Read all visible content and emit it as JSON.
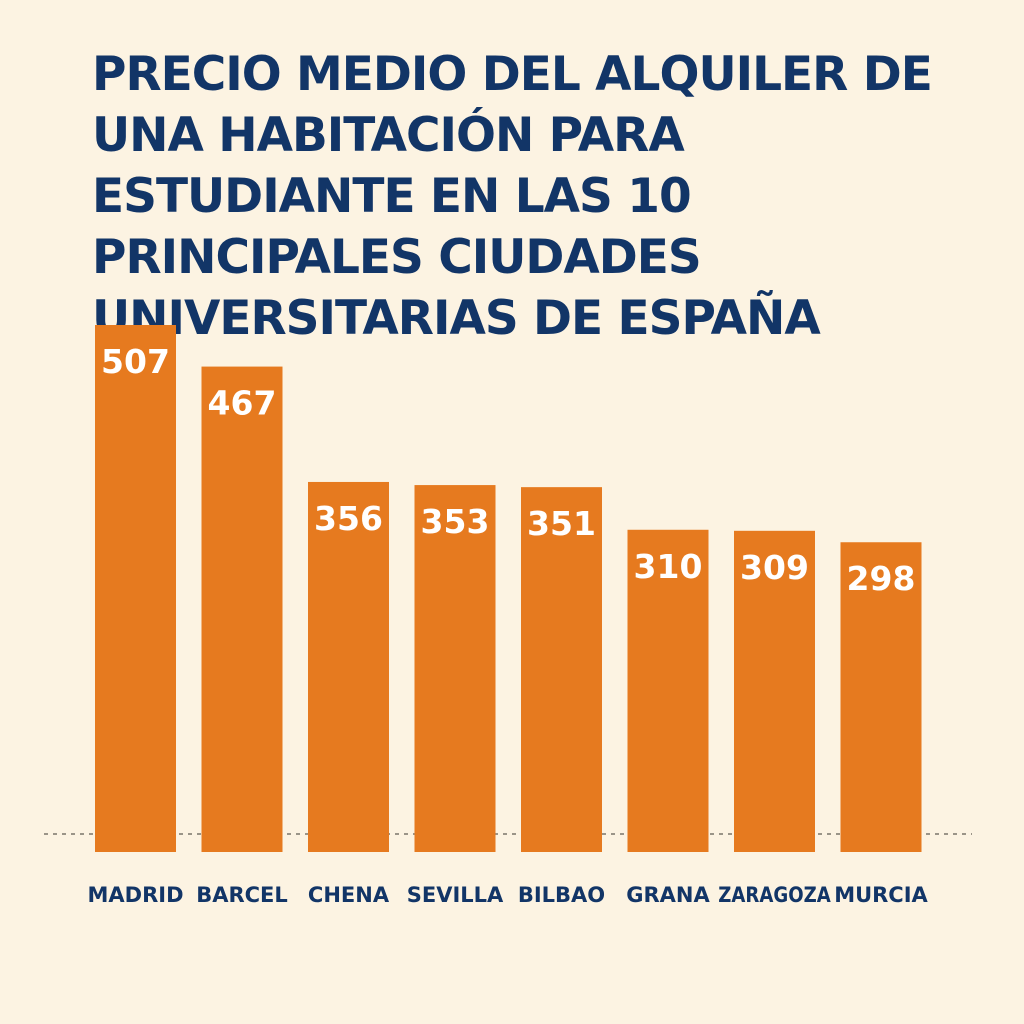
{
  "chart_data": {
    "type": "bar",
    "title": "PRECIO MEDIO DEL ALQUILER DE UNA HABITACIÓN PARA ESTUDIANTE EN LAS 10 PRINCIPALES CIUDADES UNIVERSITARIAS DE ESPAÑA",
    "categories": [
      "MADRID",
      "BARCEL",
      "CHENA",
      "SEVILLA",
      "BILBAO",
      "GRANA",
      "ZARAGOZA",
      "MURCIA"
    ],
    "values": [
      507,
      467,
      356,
      353,
      351,
      310,
      309,
      298
    ],
    "xlabel": "",
    "ylabel": "",
    "ylim": [
      0,
      507
    ],
    "grid": false,
    "colors": {
      "bar": "#e67a1f",
      "title": "#123567",
      "bar_label": "#ffffff",
      "category_label": "#123567",
      "baseline": "#9a9488",
      "background": "#fcf3e2"
    }
  }
}
